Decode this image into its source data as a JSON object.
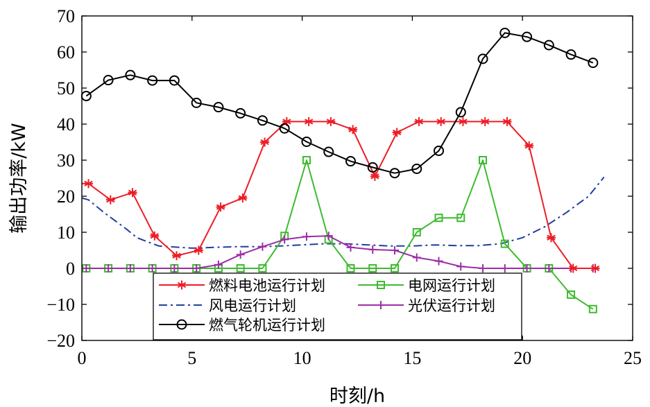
{
  "chart_data": {
    "type": "line",
    "xlabel": "时刻/h",
    "ylabel": "输出功率/kW",
    "xlim": [
      0,
      25
    ],
    "ylim": [
      -20,
      70
    ],
    "xticks": [
      0,
      5,
      10,
      15,
      20,
      25
    ],
    "yticks": [
      -20,
      -10,
      0,
      10,
      20,
      30,
      40,
      50,
      60,
      70
    ],
    "ytick_labels": [
      "−20",
      "−10",
      "0",
      "10",
      "20",
      "30",
      "40",
      "50",
      "60",
      "70"
    ],
    "grid": false,
    "legend_position": "bottom-center",
    "series": [
      {
        "name": "燃料电池运行计划",
        "color": "#ee1c25",
        "style": "solid",
        "marker": "asterisk",
        "x": [
          0,
          0.3,
          1.3,
          2.3,
          3.3,
          4.3,
          5.3,
          6.3,
          7.3,
          8.3,
          9.3,
          10.3,
          11.3,
          12.3,
          13.3,
          14.3,
          15.3,
          16.3,
          17.3,
          18.3,
          19.3,
          20.3,
          21.3,
          22.3,
          23.3
        ],
        "y": [
          23.5,
          23.5,
          19,
          21,
          9,
          3.5,
          5,
          17,
          19.5,
          35,
          40.7,
          40.7,
          40.7,
          38.5,
          25.5,
          37.7,
          40.7,
          40.7,
          40.7,
          40.7,
          40.7,
          34,
          8.5,
          0,
          0
        ],
        "marker_skip_first": true
      },
      {
        "name": "风电运行计划",
        "color": "#1f3f9e",
        "style": "dashdot",
        "marker": "none",
        "x": [
          0,
          0.3,
          1,
          2,
          2.5,
          3,
          3.5,
          4,
          5,
          6,
          7,
          8,
          9,
          10,
          11,
          12,
          13,
          14,
          15,
          16,
          17,
          18,
          19,
          20,
          21,
          22,
          23,
          23.7
        ],
        "y": [
          19.5,
          19,
          15.5,
          11,
          8.5,
          7.3,
          6.2,
          6,
          5.6,
          5.8,
          6,
          6,
          6.2,
          6.5,
          6.8,
          6.8,
          6.5,
          6.2,
          6.2,
          6.5,
          6.3,
          6.3,
          6.8,
          8.5,
          11.5,
          15.5,
          20,
          25.3
        ]
      },
      {
        "name": "燃气轮机运行计划",
        "color": "#000000",
        "style": "solid",
        "marker": "circle",
        "x": [
          0.2,
          1.2,
          2.2,
          3.2,
          4.2,
          5.2,
          6.2,
          7.2,
          8.2,
          9.2,
          10.2,
          11.2,
          12.2,
          13.2,
          14.2,
          15.2,
          16.2,
          17.2,
          18.2,
          19.2,
          20.2,
          21.2,
          22.2,
          23.2
        ],
        "y": [
          47.8,
          52.2,
          53.6,
          52.1,
          52.1,
          45.9,
          44.7,
          43,
          41,
          38.8,
          35.1,
          32.3,
          29.7,
          28,
          26.4,
          27.6,
          32.6,
          43.3,
          58.1,
          65.3,
          64.2,
          61.9,
          59.3,
          57
        ]
      },
      {
        "name": "电网运行计划",
        "color": "#3dbb2e",
        "style": "solid",
        "marker": "square",
        "x": [
          0,
          0.2,
          1.2,
          2.2,
          3.2,
          4.2,
          5.2,
          6.2,
          7.2,
          8.2,
          9.2,
          10.2,
          11.2,
          12.2,
          13.2,
          14.2,
          15.2,
          16.2,
          17.2,
          18.2,
          19.2,
          20.2,
          21.2,
          22.2,
          23.2
        ],
        "y": [
          0,
          0,
          0,
          0,
          0,
          0,
          0,
          0,
          0,
          0,
          9,
          30,
          8,
          0,
          0,
          0,
          10,
          14,
          14,
          30,
          6.8,
          0,
          0,
          -7.3,
          -11.3
        ],
        "marker_skip_first": true
      },
      {
        "name": "光伏运行计划",
        "color": "#9c2ca7",
        "style": "solid",
        "marker": "plus",
        "x": [
          0,
          0.2,
          1.2,
          2.2,
          3.2,
          4.2,
          5.2,
          6.2,
          7.2,
          8.2,
          9.2,
          10.2,
          11.2,
          12.2,
          13.2,
          14.2,
          15.2,
          16.2,
          17.2,
          18.2,
          19.2,
          20.2,
          21.2,
          22.2,
          23.2
        ],
        "y": [
          0,
          0,
          0,
          0,
          0,
          0,
          0,
          1,
          3.8,
          6,
          8,
          8.8,
          9,
          5.8,
          5.2,
          5,
          3,
          2,
          0.5,
          0,
          0,
          0,
          0,
          0,
          0
        ],
        "marker_skip_first": true
      }
    ],
    "legend_order": [
      0,
      3,
      1,
      4,
      2
    ]
  }
}
